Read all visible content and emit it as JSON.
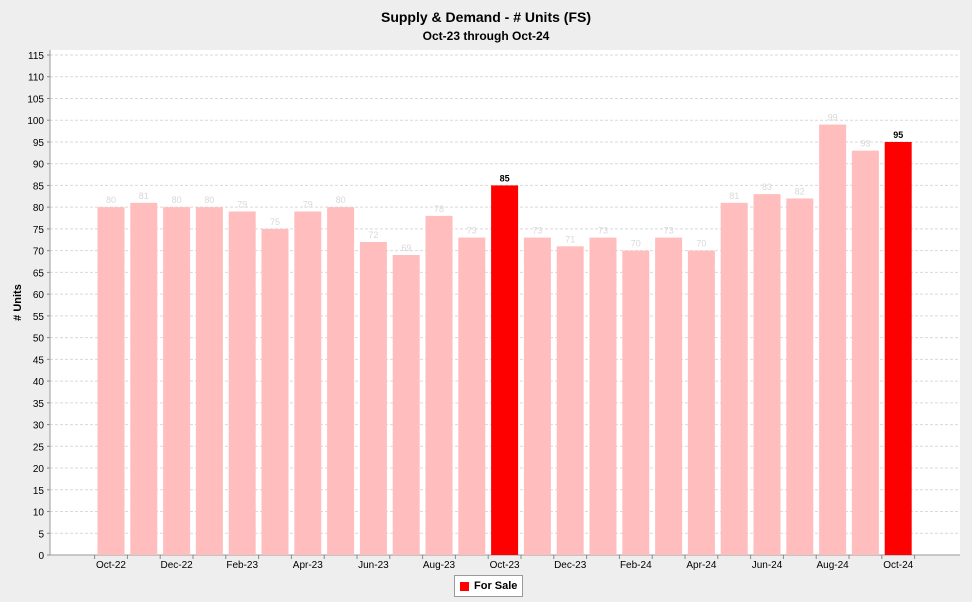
{
  "chart_data": {
    "type": "bar",
    "title": "Supply & Demand - # Units (FS)",
    "subtitle": "Oct-23 through Oct-24",
    "ylabel": "# Units",
    "xlabel": "",
    "ylim": [
      0,
      115
    ],
    "ytick_step": 5,
    "grid": true,
    "legend_position": "bottom-center",
    "categories": [
      "Oct-22",
      "Nov-22",
      "Dec-22",
      "Jan-23",
      "Feb-23",
      "Mar-23",
      "Apr-23",
      "May-23",
      "Jun-23",
      "Jul-23",
      "Aug-23",
      "Sep-23",
      "Oct-23",
      "Nov-23",
      "Dec-23",
      "Jan-24",
      "Feb-24",
      "Mar-24",
      "Apr-24",
      "May-24",
      "Jun-24",
      "Jul-24",
      "Aug-24",
      "Sep-24",
      "Oct-24"
    ],
    "x_tick_labels": [
      "Oct-22",
      "Dec-22",
      "Feb-23",
      "Apr-23",
      "Jun-23",
      "Aug-23",
      "Oct-23",
      "Dec-23",
      "Feb-24",
      "Apr-24",
      "Jun-24",
      "Aug-24",
      "Oct-24"
    ],
    "series": [
      {
        "name": "For Sale",
        "values": [
          80,
          81,
          80,
          80,
          79,
          75,
          79,
          80,
          72,
          69,
          78,
          73,
          85,
          73,
          71,
          73,
          70,
          73,
          70,
          81,
          83,
          82,
          99,
          93,
          95
        ]
      }
    ],
    "highlighted_categories": [
      "Oct-23",
      "Oct-24"
    ],
    "colors": {
      "highlight": "#ff0000",
      "faded": "#ffbdbd",
      "faded_label": "#d8d8d8",
      "highlight_label": "#000000"
    }
  }
}
